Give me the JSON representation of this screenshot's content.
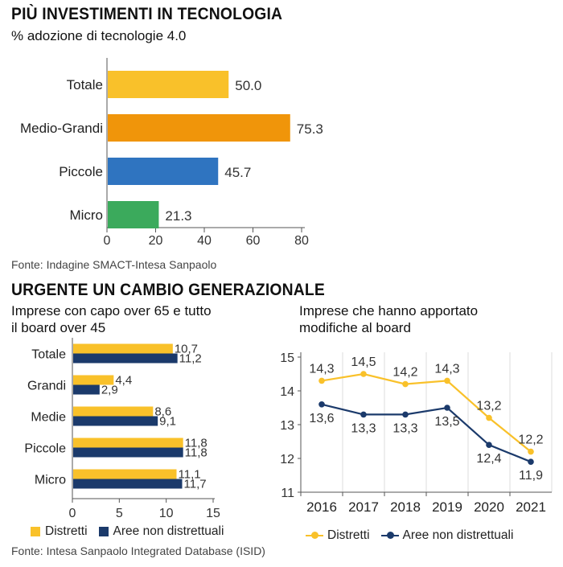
{
  "colors": {
    "yellow": "#F9C12A",
    "orange": "#F0950A",
    "blue": "#2F74C0",
    "green": "#3BAA5C",
    "navy": "#1B3A6B",
    "axis": "#555555",
    "grid": "#dddddd"
  },
  "section1": {
    "title": "PIÙ INVESTIMENTI IN TECNOLOGIA",
    "subtitle": "% adozione di tecnologie 4.0",
    "source": "Fonte: Indagine SMACT-Intesa Sanpaolo"
  },
  "section2": {
    "title": "URGENTE UN CAMBIO GENERAZIONALE",
    "left_subtitle_1": "Imprese con capo over 65 e tutto",
    "left_subtitle_2": "il board over 45",
    "right_subtitle_1": "Imprese che hanno apportato",
    "right_subtitle_2": "modifiche al board",
    "left_legend": [
      "Distretti",
      "Aree non distrettuali"
    ],
    "right_legend": [
      "Distretti",
      "Aree non distrettuali"
    ],
    "source": "Fonte: Intesa Sanpaolo Integrated Database (ISID)"
  },
  "chart_data": [
    {
      "type": "bar",
      "orientation": "horizontal",
      "categories": [
        "Totale",
        "Medio-Grandi",
        "Piccole",
        "Micro"
      ],
      "values": [
        50.0,
        75.3,
        45.7,
        21.3
      ],
      "value_labels": [
        "50.0",
        "75.3",
        "45.7",
        "21.3"
      ],
      "bar_colors": [
        "#F9C12A",
        "#F0950A",
        "#2F74C0",
        "#3BAA5C"
      ],
      "xlim": [
        0,
        80
      ],
      "xticks": [
        0,
        20,
        40,
        60,
        80
      ]
    },
    {
      "type": "bar",
      "orientation": "horizontal",
      "categories": [
        "Totale",
        "Grandi",
        "Medie",
        "Piccole",
        "Micro"
      ],
      "series": [
        {
          "name": "Distretti",
          "color": "#F9C12A",
          "values": [
            10.7,
            4.4,
            8.6,
            11.8,
            11.1
          ],
          "labels": [
            "10,7",
            "4,4",
            "8,6",
            "11,8",
            "11,1"
          ]
        },
        {
          "name": "Aree non distrettuali",
          "color": "#1B3A6B",
          "values": [
            11.2,
            2.9,
            9.1,
            11.8,
            11.7
          ],
          "labels": [
            "11,2",
            "2,9",
            "9,1",
            "11,8",
            "11,7"
          ]
        }
      ],
      "xlim": [
        0,
        15
      ],
      "xticks": [
        0,
        5,
        10,
        15
      ]
    },
    {
      "type": "line",
      "x": [
        "2016",
        "2017",
        "2018",
        "2019",
        "2020",
        "2021"
      ],
      "series": [
        {
          "name": "Distretti",
          "color": "#F9C12A",
          "values": [
            14.3,
            14.5,
            14.2,
            14.3,
            13.2,
            12.2
          ],
          "labels": [
            "14,3",
            "14,5",
            "14,2",
            "14,3",
            "13,2",
            "12,2"
          ]
        },
        {
          "name": "Aree non distrettuali",
          "color": "#1B3A6B",
          "values": [
            13.6,
            13.3,
            13.3,
            13.5,
            12.4,
            11.9
          ],
          "labels": [
            "13,6",
            "13,3",
            "13,3",
            "13,5",
            "12,4",
            "11,9"
          ]
        }
      ],
      "ylim": [
        11,
        15
      ],
      "yticks": [
        11,
        12,
        13,
        14,
        15
      ],
      "grid": true
    }
  ]
}
